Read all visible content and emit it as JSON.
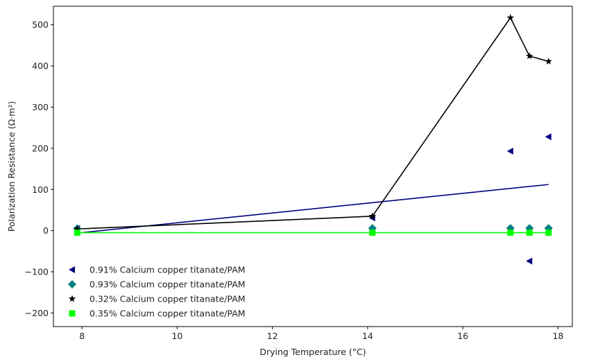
{
  "chart_data": {
    "type": "scatter",
    "title": "",
    "xlabel": "Drying Temperature (°C)",
    "ylabel": "Polarization Resistance (Ω·m²)",
    "xlim": [
      7.4,
      18.3
    ],
    "ylim": [
      -233,
      545
    ],
    "xticks": [
      8,
      10,
      12,
      14,
      16,
      18
    ],
    "yticks": [
      -200,
      -100,
      0,
      100,
      200,
      300,
      400,
      500
    ],
    "grid": false,
    "legend_position": "lower-left",
    "series": [
      {
        "name": "0.91% Calcium copper titanate/PAM",
        "color": "#000080",
        "marker": "triangle-left",
        "x": [
          7.9,
          14.1,
          17.0,
          17.4,
          17.8
        ],
        "y": [
          5,
          31,
          193,
          -74,
          228
        ],
        "fit_line": {
          "x": [
            7.9,
            17.8
          ],
          "y": [
            -6,
            112
          ]
        }
      },
      {
        "name": "0.93% Calcium copper titanate/PAM",
        "color": "#008080",
        "marker": "diamond",
        "x": [
          7.9,
          14.1,
          17.0,
          17.4,
          17.8
        ],
        "y": [
          5,
          6,
          6,
          6,
          6
        ]
      },
      {
        "name": "0.32% Calcium copper titanate/PAM",
        "color": "#000000",
        "marker": "star",
        "x": [
          7.9,
          14.1,
          17.0,
          17.4,
          17.8
        ],
        "y": [
          4,
          35,
          517,
          424,
          411
        ],
        "connect": true
      },
      {
        "name": "0.35% Calcium copper titanate/PAM",
        "color": "#00ff00",
        "marker": "square",
        "x": [
          7.9,
          14.1,
          17.0,
          17.4,
          17.8
        ],
        "y": [
          -5,
          -5,
          -5,
          -5,
          -5
        ],
        "fit_line": {
          "x": [
            7.9,
            17.8
          ],
          "y": [
            -5,
            -5
          ]
        }
      }
    ]
  }
}
